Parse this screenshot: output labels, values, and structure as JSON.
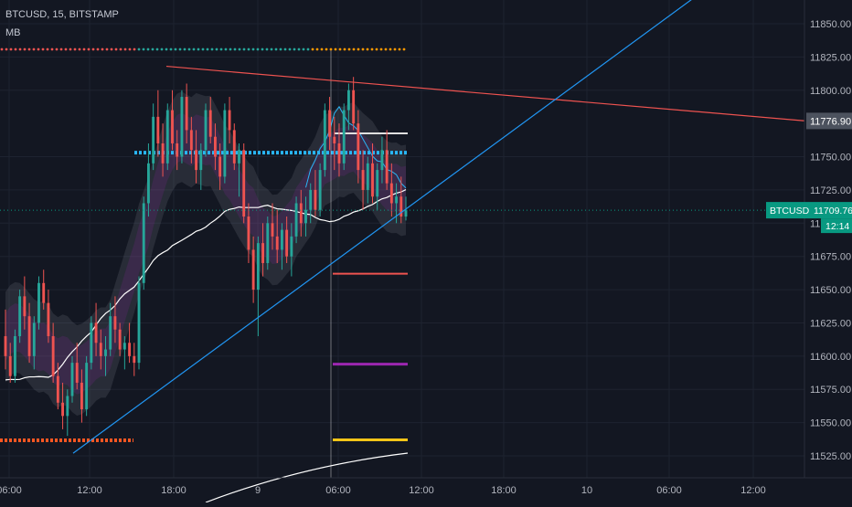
{
  "header": {
    "title": "BTCUSD, 15, BITSTAMP",
    "indicator": "MB"
  },
  "colors": {
    "background": "#131722",
    "grid": "#1e2330",
    "axis_text": "#b2b5be",
    "up": "#26a69a",
    "down": "#ef5350",
    "trend_red": "#ef5350",
    "trend_blue": "#2196f3",
    "price_label": "#089981",
    "marker_label": "#4c525e"
  },
  "chart_data": {
    "type": "candlestick",
    "symbol": "BTCUSD",
    "interval": "15",
    "exchange": "BITSTAMP",
    "y_ticks": [
      "11850.00",
      "11825.00",
      "11800.00",
      "11776.90",
      "11750.00",
      "11725.00",
      "11700.00",
      "11675.00",
      "11650.00",
      "11625.00",
      "11600.00",
      "11575.00",
      "11550.00",
      "11525.00"
    ],
    "x_ticks": [
      "06:00",
      "12:00",
      "18:00",
      "9",
      "06:00",
      "12:00",
      "18:00",
      "10",
      "06:00",
      "12:00"
    ],
    "ylim": [
      11517,
      11867
    ],
    "grid": true,
    "last_price": {
      "label": "BTCUSD",
      "value": "11709.76",
      "countdown": "12:14"
    },
    "marker_price": "11776.90",
    "levels": [
      {
        "name": "white",
        "value": 11755,
        "color": "#e0e0e0"
      },
      {
        "name": "cyan",
        "value": 11753,
        "color": "#29b6f6"
      },
      {
        "name": "red",
        "value": 11662,
        "color": "#ef5350"
      },
      {
        "name": "purple",
        "value": 11594,
        "color": "#9c27b0"
      },
      {
        "name": "yellow",
        "value": 11537,
        "color": "#f5c518"
      },
      {
        "name": "orange",
        "value": 11537,
        "color": "#ff5722"
      }
    ],
    "trendlines": [
      {
        "name": "red-resistance",
        "points": [
          [
            "18:00",
            11818
          ],
          [
            "right-edge",
            11777
          ]
        ],
        "color": "#ef5350"
      },
      {
        "name": "blue-support",
        "points": [
          [
            "~10:00",
            11527
          ],
          [
            "~03:00 day 10",
            11870
          ]
        ],
        "color": "#2196f3"
      }
    ],
    "candles_ohlc": [
      [
        11615,
        11635,
        11590,
        11600
      ],
      [
        11600,
        11610,
        11580,
        11585
      ],
      [
        11585,
        11620,
        11580,
        11615
      ],
      [
        11615,
        11650,
        11610,
        11645
      ],
      [
        11645,
        11660,
        11620,
        11630
      ],
      [
        11630,
        11640,
        11595,
        11600
      ],
      [
        11600,
        11630,
        11590,
        11625
      ],
      [
        11625,
        11660,
        11620,
        11655
      ],
      [
        11655,
        11665,
        11635,
        11640
      ],
      [
        11640,
        11650,
        11610,
        11615
      ],
      [
        11615,
        11625,
        11580,
        11585
      ],
      [
        11585,
        11595,
        11560,
        11565
      ],
      [
        11565,
        11580,
        11545,
        11555
      ],
      [
        11555,
        11575,
        11540,
        11570
      ],
      [
        11570,
        11600,
        11565,
        11595
      ],
      [
        11595,
        11610,
        11575,
        11580
      ],
      [
        11580,
        11590,
        11550,
        11560
      ],
      [
        11560,
        11600,
        11555,
        11595
      ],
      [
        11595,
        11630,
        11590,
        11625
      ],
      [
        11625,
        11640,
        11600,
        11610
      ],
      [
        11610,
        11620,
        11590,
        11600
      ],
      [
        11600,
        11615,
        11585,
        11605
      ],
      [
        11605,
        11640,
        11600,
        11630
      ],
      [
        11630,
        11645,
        11610,
        11620
      ],
      [
        11620,
        11625,
        11600,
        11605
      ],
      [
        11605,
        11615,
        11590,
        11610
      ],
      [
        11610,
        11625,
        11595,
        11600
      ],
      [
        11600,
        11610,
        11585,
        11595
      ],
      [
        11595,
        11660,
        11590,
        11655
      ],
      [
        11655,
        11720,
        11650,
        11715
      ],
      [
        11715,
        11760,
        11705,
        11745
      ],
      [
        11745,
        11790,
        11740,
        11780
      ],
      [
        11780,
        11800,
        11750,
        11760
      ],
      [
        11760,
        11775,
        11735,
        11745
      ],
      [
        11745,
        11790,
        11740,
        11785
      ],
      [
        11785,
        11800,
        11755,
        11760
      ],
      [
        11760,
        11770,
        11740,
        11750
      ],
      [
        11750,
        11800,
        11745,
        11795
      ],
      [
        11795,
        11805,
        11760,
        11770
      ],
      [
        11770,
        11780,
        11745,
        11755
      ],
      [
        11755,
        11770,
        11730,
        11740
      ],
      [
        11740,
        11760,
        11725,
        11755
      ],
      [
        11755,
        11790,
        11750,
        11785
      ],
      [
        11785,
        11795,
        11760,
        11765
      ],
      [
        11765,
        11775,
        11740,
        11750
      ],
      [
        11750,
        11760,
        11725,
        11735
      ],
      [
        11735,
        11790,
        11730,
        11785
      ],
      [
        11785,
        11795,
        11760,
        11770
      ],
      [
        11770,
        11775,
        11740,
        11745
      ],
      [
        11745,
        11760,
        11720,
        11755
      ],
      [
        11755,
        11760,
        11700,
        11705
      ],
      [
        11705,
        11715,
        11670,
        11680
      ],
      [
        11680,
        11690,
        11640,
        11650
      ],
      [
        11650,
        11690,
        11615,
        11685
      ],
      [
        11685,
        11700,
        11660,
        11670
      ],
      [
        11670,
        11705,
        11665,
        11700
      ],
      [
        11700,
        11715,
        11680,
        11690
      ],
      [
        11690,
        11710,
        11670,
        11680
      ],
      [
        11680,
        11700,
        11665,
        11695
      ],
      [
        11695,
        11705,
        11670,
        11675
      ],
      [
        11675,
        11700,
        11660,
        11690
      ],
      [
        11690,
        11720,
        11685,
        11715
      ],
      [
        11715,
        11725,
        11690,
        11700
      ],
      [
        11700,
        11720,
        11690,
        11710
      ],
      [
        11710,
        11730,
        11700,
        11725
      ],
      [
        11725,
        11740,
        11705,
        11710
      ],
      [
        11710,
        11745,
        11705,
        11740
      ],
      [
        11740,
        11790,
        11735,
        11785
      ],
      [
        11785,
        11795,
        11755,
        11765
      ],
      [
        11765,
        11780,
        11740,
        11760
      ],
      [
        11760,
        11775,
        11735,
        11745
      ],
      [
        11745,
        11790,
        11740,
        11785
      ],
      [
        11785,
        11805,
        11770,
        11800
      ],
      [
        11800,
        11810,
        11770,
        11775
      ],
      [
        11775,
        11785,
        11730,
        11740
      ],
      [
        11740,
        11755,
        11710,
        11725
      ],
      [
        11725,
        11750,
        11715,
        11745
      ],
      [
        11745,
        11760,
        11715,
        11720
      ],
      [
        11720,
        11745,
        11710,
        11740
      ],
      [
        11740,
        11765,
        11730,
        11755
      ],
      [
        11755,
        11770,
        11725,
        11730
      ],
      [
        11730,
        11745,
        11705,
        11715
      ],
      [
        11715,
        11730,
        11700,
        11720
      ],
      [
        11720,
        11735,
        11700,
        11705
      ],
      [
        11705,
        11720,
        11702,
        11710
      ]
    ]
  }
}
